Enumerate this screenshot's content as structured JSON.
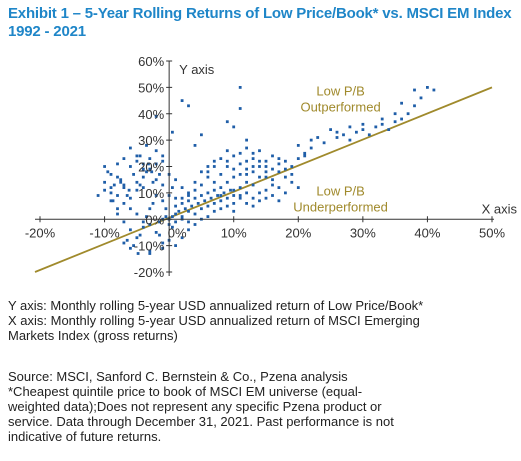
{
  "title": {
    "line1": "Exhibit 1 – 5-Year Rolling Returns of Low Price/Book* vs. MSCI EM Index",
    "line2": "1992 - 2021"
  },
  "chart_data": {
    "type": "scatter",
    "title": "Exhibit 1 – 5-Year Rolling Returns of Low Price/Book* vs. MSCI EM Index 1992 - 2021",
    "xlabel": "X axis",
    "ylabel": "Y axis",
    "xlim": [
      -20,
      50
    ],
    "ylim": [
      -20,
      60
    ],
    "x_ticks": [
      "-20%",
      "-10%",
      "0%",
      "10%",
      "20%",
      "30%",
      "40%",
      "50%"
    ],
    "y_ticks": [
      "-20%",
      "-10%",
      "0%",
      "10%",
      "20%",
      "30%",
      "40%",
      "50%",
      "60%"
    ],
    "point_color": "#1f5ea8",
    "line_color": "#a08a2c",
    "reference_line": {
      "from": [
        -20,
        -20
      ],
      "to": [
        50,
        50
      ]
    },
    "annotations": [
      {
        "lines": [
          "Low P/B",
          "Outperformed"
        ],
        "x": 25,
        "y": 47
      },
      {
        "lines": [
          "Low P/B",
          "Underperformed"
        ],
        "x": 25,
        "y": 9
      }
    ],
    "points": [
      [
        -10,
        20
      ],
      [
        -9.5,
        18
      ],
      [
        -9,
        17
      ],
      [
        -8.5,
        13
      ],
      [
        -8,
        16
      ],
      [
        -7.5,
        14
      ],
      [
        -7,
        12
      ],
      [
        -6.5,
        9
      ],
      [
        -6,
        8
      ],
      [
        -5.5,
        17
      ],
      [
        -5,
        11
      ],
      [
        -4.5,
        13
      ],
      [
        -4,
        16
      ],
      [
        -3.5,
        18
      ],
      [
        -3,
        19
      ],
      [
        -2.5,
        14
      ],
      [
        -2,
        15
      ],
      [
        -1.5,
        17
      ],
      [
        -1,
        13
      ],
      [
        -9,
        10
      ],
      [
        -8.7,
        7
      ],
      [
        -7.5,
        15
      ],
      [
        -6.2,
        11
      ],
      [
        -5,
        14
      ],
      [
        -4,
        12
      ],
      [
        -2.7,
        18
      ],
      [
        -3.2,
        21
      ],
      [
        -4.5,
        24
      ],
      [
        -3.5,
        28
      ],
      [
        -2,
        26
      ],
      [
        -1,
        24
      ],
      [
        -8,
        2
      ],
      [
        -7,
        -1
      ],
      [
        -6,
        -4
      ],
      [
        -5,
        -7
      ],
      [
        -4.5,
        -6
      ],
      [
        -4,
        -3
      ],
      [
        -3,
        -2
      ],
      [
        -2,
        -5
      ],
      [
        -1.5,
        -1
      ],
      [
        -1,
        0
      ],
      [
        -0.5,
        1
      ],
      [
        0,
        -2
      ],
      [
        -7,
        -9
      ],
      [
        -6.5,
        -8
      ],
      [
        -6,
        -11
      ],
      [
        -5.5,
        -10
      ],
      [
        -4.8,
        -13
      ],
      [
        -3,
        -12
      ],
      [
        -1,
        -9
      ],
      [
        0,
        -8
      ],
      [
        0,
        0
      ],
      [
        0.5,
        1
      ],
      [
        1,
        2
      ],
      [
        1.5,
        3
      ],
      [
        2,
        1
      ],
      [
        2.5,
        4
      ],
      [
        3,
        3
      ],
      [
        3.5,
        5
      ],
      [
        4,
        2
      ],
      [
        4.5,
        6
      ],
      [
        5,
        4
      ],
      [
        5.5,
        7
      ],
      [
        6,
        5
      ],
      [
        6.5,
        8
      ],
      [
        7,
        6
      ],
      [
        7.5,
        9
      ],
      [
        8,
        7
      ],
      [
        8.5,
        10
      ],
      [
        9,
        8
      ],
      [
        9.5,
        11
      ],
      [
        10,
        9
      ],
      [
        1,
        -1
      ],
      [
        2,
        0
      ],
      [
        3,
        -1
      ],
      [
        0.5,
        -3
      ],
      [
        -1.5,
        -6
      ],
      [
        1,
        5
      ],
      [
        2,
        6
      ],
      [
        3,
        7
      ],
      [
        4,
        8
      ],
      [
        5,
        9
      ],
      [
        6,
        10
      ],
      [
        7,
        11
      ],
      [
        8,
        12
      ],
      [
        6,
        18
      ],
      [
        7,
        22
      ],
      [
        8,
        17
      ],
      [
        9,
        20
      ],
      [
        10,
        16
      ],
      [
        11,
        21
      ],
      [
        12,
        19
      ],
      [
        13,
        23
      ],
      [
        14,
        20
      ],
      [
        15,
        22
      ],
      [
        16,
        24
      ],
      [
        17,
        21
      ],
      [
        18,
        19
      ],
      [
        14,
        26
      ],
      [
        15,
        18
      ],
      [
        16,
        15
      ],
      [
        17,
        12
      ],
      [
        18,
        16
      ],
      [
        12,
        14
      ],
      [
        11,
        12
      ],
      [
        10,
        11
      ],
      [
        9,
        14
      ],
      [
        8,
        9
      ],
      [
        19,
        14
      ],
      [
        20,
        12
      ],
      [
        13,
        8
      ],
      [
        14,
        10
      ],
      [
        15,
        11
      ],
      [
        16,
        13
      ],
      [
        11,
        8
      ],
      [
        12,
        10
      ],
      [
        10,
        6
      ],
      [
        11,
        9
      ],
      [
        13,
        13
      ],
      [
        15,
        16
      ],
      [
        17,
        18
      ],
      [
        19,
        20
      ],
      [
        20,
        23
      ],
      [
        21,
        25
      ],
      [
        20,
        28
      ],
      [
        22,
        30
      ],
      [
        24,
        29
      ],
      [
        26,
        31
      ],
      [
        27,
        32
      ],
      [
        28,
        30
      ],
      [
        29,
        33
      ],
      [
        30,
        34
      ],
      [
        31,
        32
      ],
      [
        32,
        35
      ],
      [
        33,
        36
      ],
      [
        34,
        34
      ],
      [
        35,
        37
      ],
      [
        36,
        38
      ],
      [
        37,
        40
      ],
      [
        38,
        43
      ],
      [
        39,
        46
      ],
      [
        40,
        50
      ],
      [
        41,
        49
      ],
      [
        38,
        49
      ],
      [
        36,
        44
      ],
      [
        35,
        40
      ],
      [
        33,
        38
      ],
      [
        30,
        36
      ],
      [
        28,
        35
      ],
      [
        26,
        33
      ],
      [
        25,
        34
      ],
      [
        23,
        31
      ],
      [
        22,
        27
      ],
      [
        21,
        24
      ],
      [
        5,
        32
      ],
      [
        9,
        37
      ],
      [
        10,
        35
      ],
      [
        11,
        42
      ],
      [
        12,
        30
      ],
      [
        4,
        28
      ],
      [
        3,
        43
      ],
      [
        2,
        45
      ],
      [
        11,
        50
      ],
      [
        -2,
        39
      ],
      [
        0.5,
        33
      ],
      [
        -4,
        21
      ],
      [
        -5,
        24
      ],
      [
        -6,
        27
      ],
      [
        -7,
        13
      ],
      [
        -10,
        11
      ],
      [
        -11,
        9
      ],
      [
        -9,
        7
      ],
      [
        -8,
        4
      ],
      [
        1,
        15
      ],
      [
        2,
        12
      ],
      [
        3,
        10
      ],
      [
        4,
        14
      ],
      [
        5,
        18
      ],
      [
        6,
        20
      ],
      [
        7,
        14
      ],
      [
        3,
        -4
      ],
      [
        2,
        -7
      ],
      [
        1,
        -10
      ],
      [
        -1,
        -11
      ],
      [
        -3,
        -13
      ],
      [
        4,
        -2
      ],
      [
        5,
        0
      ],
      [
        6,
        1
      ],
      [
        7,
        3
      ],
      [
        8,
        4
      ],
      [
        9,
        5
      ],
      [
        10,
        3
      ],
      [
        12,
        6
      ],
      [
        13,
        5
      ],
      [
        14,
        7
      ],
      [
        15,
        8
      ],
      [
        16,
        9
      ],
      [
        18,
        10
      ],
      [
        17,
        7
      ],
      [
        14,
        16
      ],
      [
        13,
        18
      ],
      [
        12,
        22
      ],
      [
        10,
        24
      ],
      [
        9,
        26
      ],
      [
        8,
        23
      ],
      [
        7,
        20
      ],
      [
        6,
        16
      ],
      [
        5,
        13
      ],
      [
        4,
        11
      ],
      [
        3,
        9
      ],
      [
        2,
        8
      ],
      [
        -0.5,
        4
      ],
      [
        -1,
        7
      ],
      [
        -2,
        9
      ],
      [
        -2.5,
        6
      ],
      [
        -3,
        4
      ],
      [
        -3.5,
        1
      ],
      [
        -4,
        -1
      ],
      [
        -5,
        2
      ],
      [
        -6,
        4
      ],
      [
        -7,
        6
      ],
      [
        -8,
        9
      ],
      [
        -9,
        12
      ],
      [
        -10,
        14
      ],
      [
        -8,
        21
      ],
      [
        -7,
        23
      ],
      [
        -6,
        20
      ],
      [
        -5,
        22
      ],
      [
        -4,
        19
      ],
      [
        -3,
        23
      ],
      [
        -2,
        21
      ],
      [
        -1,
        22
      ],
      [
        0,
        17
      ],
      [
        0.5,
        12
      ],
      [
        0,
        9
      ],
      [
        1,
        8
      ],
      [
        11,
        17
      ],
      [
        12,
        17
      ],
      [
        13,
        20
      ],
      [
        14,
        22
      ],
      [
        15,
        20
      ],
      [
        16,
        19
      ],
      [
        17,
        23
      ],
      [
        18,
        22
      ],
      [
        19,
        17
      ],
      [
        10,
        19
      ],
      [
        9,
        22
      ],
      [
        11,
        25
      ],
      [
        12,
        27
      ],
      [
        13,
        25
      ]
    ]
  },
  "notes": {
    "y_axis": "Y axis: Monthly rolling 5-year USD annualized return of Low Price/Book*",
    "x_axis_1": "X axis: Monthly rolling 5-year USD annualized return of MSCI Emerging",
    "x_axis_2": "Markets Index (gross returns)",
    "source": "Source: MSCI, Sanford C. Bernstein & Co., Pzena analysis",
    "footnote_1": "*Cheapest quintile price to book of MSCI EM universe (equal-",
    "footnote_2": "weighted data);Does not represent any specific Pzena product or",
    "footnote_3": "service. Data through December 31, 2021. Past performance is not",
    "footnote_4": "indicative of future returns."
  }
}
